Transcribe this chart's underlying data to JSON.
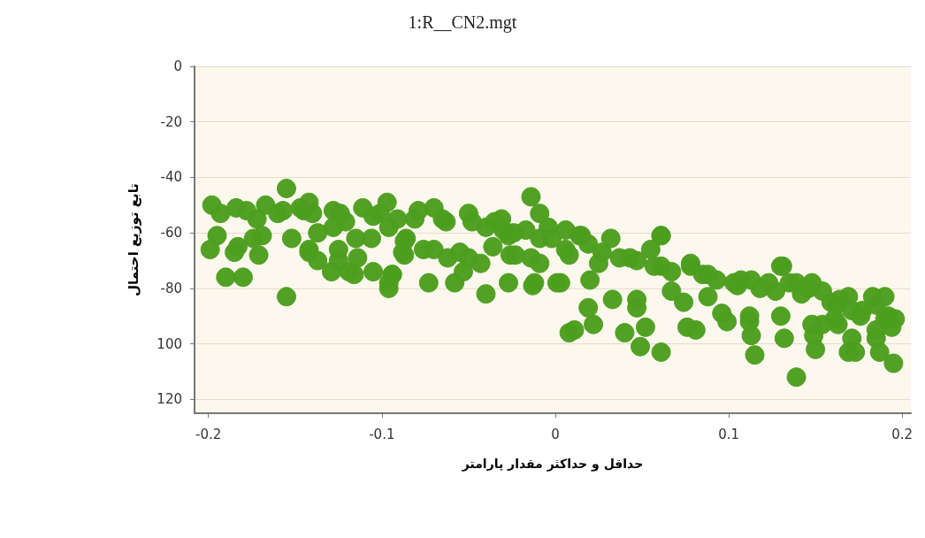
{
  "chart_data": {
    "type": "scatter",
    "title": "1:R__CN2.mgt",
    "xlabel": "حداقل و حداکثر مقدار پارامتر",
    "ylabel": "تابع توزیع احتمال",
    "xlim": [
      -0.208,
      0.205
    ],
    "xticks": [
      -0.2,
      -0.1,
      0,
      0.1,
      0.2
    ],
    "ylim": [
      -125,
      0
    ],
    "yticks": [
      0,
      -20,
      -40,
      -60,
      -80,
      {
        "value": -100,
        "label": "100"
      },
      {
        "value": -120,
        "label": "120"
      }
    ],
    "grid": "y",
    "marker": "circle",
    "series": [
      {
        "color": "#4c9e1e",
        "x": [
          -0.198,
          -0.193,
          -0.195,
          -0.199,
          -0.185,
          -0.183,
          -0.19,
          -0.18,
          -0.155,
          -0.155,
          -0.172,
          -0.167,
          -0.16,
          -0.147,
          -0.14,
          -0.137,
          -0.128,
          -0.142,
          -0.137,
          -0.129,
          -0.119,
          -0.114,
          -0.124,
          -0.111,
          -0.101,
          -0.096,
          -0.096,
          -0.094,
          -0.088,
          -0.086,
          -0.081,
          -0.07,
          -0.07,
          -0.073,
          -0.058,
          -0.053,
          -0.055,
          -0.063,
          -0.05,
          -0.04,
          -0.04,
          -0.035,
          -0.027,
          -0.017,
          -0.014,
          -0.009,
          -0.004,
          -0.027,
          -0.012,
          0.001,
          -0.014,
          -0.002,
          0.006,
          0.014,
          0.019,
          0.027,
          0.032,
          0.037,
          0.047,
          0.055,
          0.061,
          0.057,
          0.067,
          0.078,
          0.085,
          0.093,
          0.103,
          0.113,
          0.123,
          0.131,
          0.139,
          0.146,
          0.154,
          0.162,
          0.169,
          0.177,
          0.185,
          0.192,
          0.19,
          0.194,
          0.185,
          0.196,
          0.187,
          0.195,
          0.169,
          0.163,
          0.149,
          0.139,
          0.115,
          0.15,
          0.173,
          0.171,
          0.132,
          0.113,
          0.112,
          0.13,
          0.148,
          0.099,
          0.081,
          0.076,
          0.061,
          0.049,
          0.052,
          0.04,
          0.022,
          0.008,
          0.019,
          0.033,
          0.047,
          0.047,
          -0.013,
          0.003,
          0.02,
          0.067,
          0.074,
          0.088,
          0.096,
          0.112,
          0.13,
          0.183,
          0.19,
          0.161,
          0.176,
          0.159,
          0.142,
          0.127,
          0.105,
          0.148,
          0.061,
          0.015,
          -0.03,
          -0.026,
          -0.009,
          0.008,
          0.025,
          0.043,
          0.061,
          0.078,
          0.088,
          0.107,
          0.118,
          0.135,
          0.164,
          0.171,
          0.185,
          0.154,
          -0.184,
          -0.178,
          -0.157,
          -0.145,
          -0.142,
          -0.128,
          -0.121,
          -0.105,
          -0.097,
          -0.091,
          -0.079,
          -0.065,
          -0.048,
          -0.031,
          0.006,
          -0.174,
          -0.169,
          -0.171,
          -0.152,
          -0.142,
          -0.125,
          -0.125,
          -0.116,
          -0.105,
          -0.094,
          -0.096,
          -0.115,
          -0.106,
          -0.087,
          -0.076,
          -0.087,
          -0.062,
          -0.05,
          -0.043,
          -0.036,
          -0.023,
          0.011,
          -0.024,
          -0.009
        ],
        "values": [
          -50,
          -53,
          -61,
          -66,
          -67,
          -65,
          -76,
          -76,
          -83,
          -44,
          -55,
          -50,
          -53,
          -51,
          -53,
          -60,
          -58,
          -67,
          -70,
          -74,
          -74,
          -69,
          -53,
          -51,
          -53,
          -58,
          -78,
          -75,
          -67,
          -62,
          -55,
          -51,
          -66,
          -78,
          -78,
          -74,
          -67,
          -56,
          -53,
          -58,
          -82,
          -56,
          -61,
          -59,
          -47,
          -53,
          -58,
          -78,
          -78,
          -78,
          -69,
          -62,
          -66,
          -61,
          -64,
          -67,
          -62,
          -69,
          -70,
          -66,
          -61,
          -72,
          -74,
          -72,
          -75,
          -77,
          -78,
          -77,
          -78,
          -72,
          -78,
          -80,
          -81,
          -86,
          -83,
          -88,
          -86,
          -90,
          -83,
          -94,
          -98,
          -91,
          -103,
          -107,
          -103,
          -93,
          -97,
          -112,
          -104,
          -102,
          -103,
          -98,
          -98,
          -97,
          -92,
          -90,
          -93,
          -92,
          -95,
          -94,
          -103,
          -101,
          -94,
          -96,
          -93,
          -96,
          -87,
          -84,
          -87,
          -84,
          -79,
          -78,
          -77,
          -81,
          -85,
          -83,
          -89,
          -90,
          -72,
          -83,
          -91,
          -91,
          -90,
          -85,
          -82,
          -81,
          -79,
          -78,
          -61,
          -61,
          -59,
          -68,
          -71,
          -68,
          -71,
          -69,
          -72,
          -71,
          -75,
          -77,
          -80,
          -78,
          -84,
          -88,
          -95,
          -93,
          -51,
          -52,
          -52,
          -52,
          -49,
          -52,
          -56,
          -54,
          -49,
          -55,
          -52,
          -55,
          -56,
          -55,
          -59,
          -62,
          -61,
          -68,
          -62,
          -66,
          -66,
          -70,
          -75,
          -74,
          -75,
          -80,
          -62,
          -62,
          -63,
          -66,
          -68,
          -69,
          -69,
          -71,
          -65,
          -68,
          -95,
          -60,
          -62
        ]
      }
    ]
  }
}
